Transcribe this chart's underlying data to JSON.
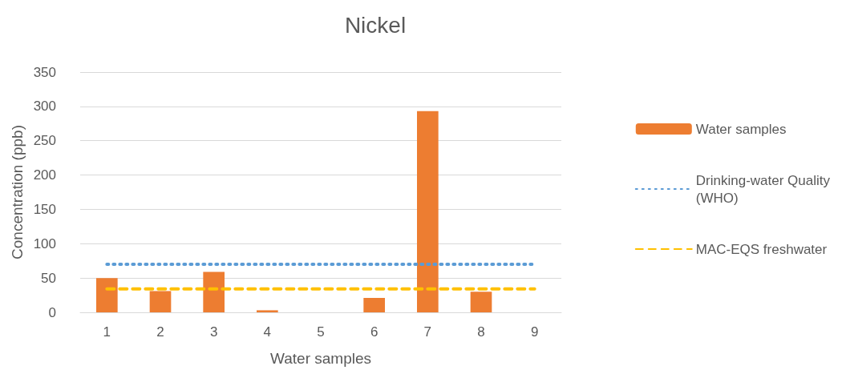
{
  "chart_data": {
    "type": "bar",
    "title": "Nickel",
    "xlabel": "Water samples",
    "ylabel": "Concentration (ppb)",
    "categories": [
      "1",
      "2",
      "3",
      "4",
      "5",
      "6",
      "7",
      "8",
      "9"
    ],
    "series": [
      {
        "name": "Water samples",
        "color": "#ed7d31",
        "values": [
          50,
          31,
          59,
          3,
          null,
          21,
          293,
          30,
          null
        ]
      },
      {
        "name": "Drinking-water Quality (WHO)",
        "type": "line",
        "color": "#5b9bd5",
        "line_style": "dotted",
        "marker": "none",
        "values": [
          70,
          70,
          70,
          70,
          70,
          70,
          70,
          70,
          70
        ]
      },
      {
        "name": "MAC-EQS freshwater",
        "type": "line",
        "color": "#ffc000",
        "line_style": "dashed",
        "marker": "none",
        "values": [
          34,
          34,
          34,
          34,
          34,
          34,
          34,
          34,
          34
        ]
      }
    ],
    "ylim": [
      0,
      350
    ],
    "yticks": [
      0,
      50,
      100,
      150,
      200,
      250,
      300,
      350
    ],
    "grid": "y",
    "legend": "right"
  }
}
